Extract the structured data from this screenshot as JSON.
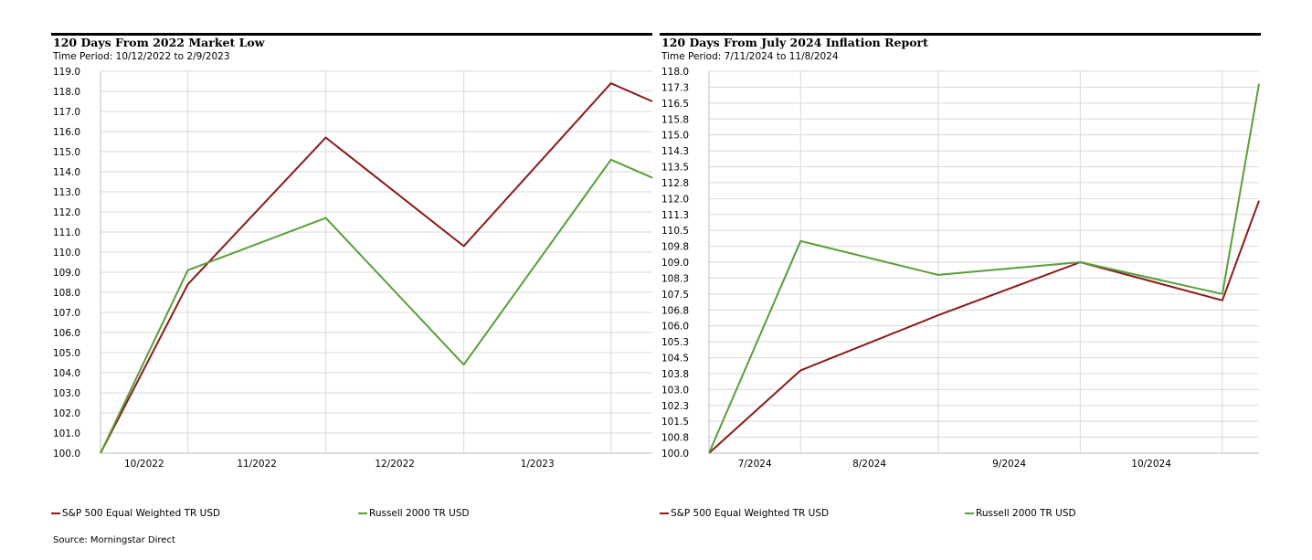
{
  "source": "Source: Morningstar Direct",
  "colors": {
    "sp500": "#8b1a1a",
    "russell": "#5a9e3a",
    "grid": "#d9d9d9"
  },
  "chart_data": [
    {
      "type": "line",
      "title": "120 Days From 2022 Market Low",
      "subtitle": "Time Period: 10/12/2022 to 2/9/2023",
      "x_tick_labels": [
        "10/2022",
        "11/2022",
        "12/2022",
        "1/2023"
      ],
      "y_tick_labels": [
        "119.0",
        "118.0",
        "117.0",
        "116.0",
        "115.0",
        "114.0",
        "113.0",
        "112.0",
        "111.0",
        "110.0",
        "109.0",
        "108.0",
        "107.0",
        "106.0",
        "105.0",
        "104.0",
        "103.0",
        "102.0",
        "101.0",
        "100.0"
      ],
      "ylim": [
        100.0,
        119.0
      ],
      "x": [
        "10/12/2022",
        "10/31/2022",
        "11/30/2022",
        "12/30/2022",
        "1/31/2023",
        "2/9/2023"
      ],
      "series": [
        {
          "name": "S&P 500 Equal Weighted TR USD",
          "values": [
            100.0,
            108.4,
            115.7,
            110.3,
            118.4,
            117.5
          ]
        },
        {
          "name": "Russell 2000 TR USD",
          "values": [
            100.0,
            109.1,
            111.7,
            104.4,
            114.6,
            113.7
          ]
        }
      ],
      "legend": "bottom"
    },
    {
      "type": "line",
      "title": "120 Days From July 2024 Inflation Report",
      "subtitle": "Time Period: 7/11/2024 to 11/8/2024",
      "x_tick_labels": [
        "7/2024",
        "8/2024",
        "9/2024",
        "10/2024"
      ],
      "y_tick_labels": [
        "118.0",
        "117.3",
        "116.5",
        "115.8",
        "115.0",
        "114.3",
        "113.5",
        "112.8",
        "112.0",
        "111.3",
        "110.5",
        "109.8",
        "109.0",
        "108.3",
        "107.5",
        "106.8",
        "106.0",
        "105.3",
        "104.5",
        "103.8",
        "103.0",
        "102.3",
        "101.5",
        "100.8",
        "100.0"
      ],
      "ylim": [
        100.0,
        118.0
      ],
      "x": [
        "7/11/2024",
        "7/31/2024",
        "8/30/2024",
        "9/30/2024",
        "10/31/2024",
        "11/8/2024"
      ],
      "series": [
        {
          "name": "S&P 500 Equal Weighted TR USD",
          "values": [
            100.0,
            103.9,
            106.5,
            109.0,
            107.2,
            111.9
          ]
        },
        {
          "name": "Russell 2000 TR USD",
          "values": [
            100.0,
            110.0,
            108.4,
            109.0,
            107.5,
            117.4
          ]
        }
      ],
      "legend": "bottom"
    }
  ]
}
